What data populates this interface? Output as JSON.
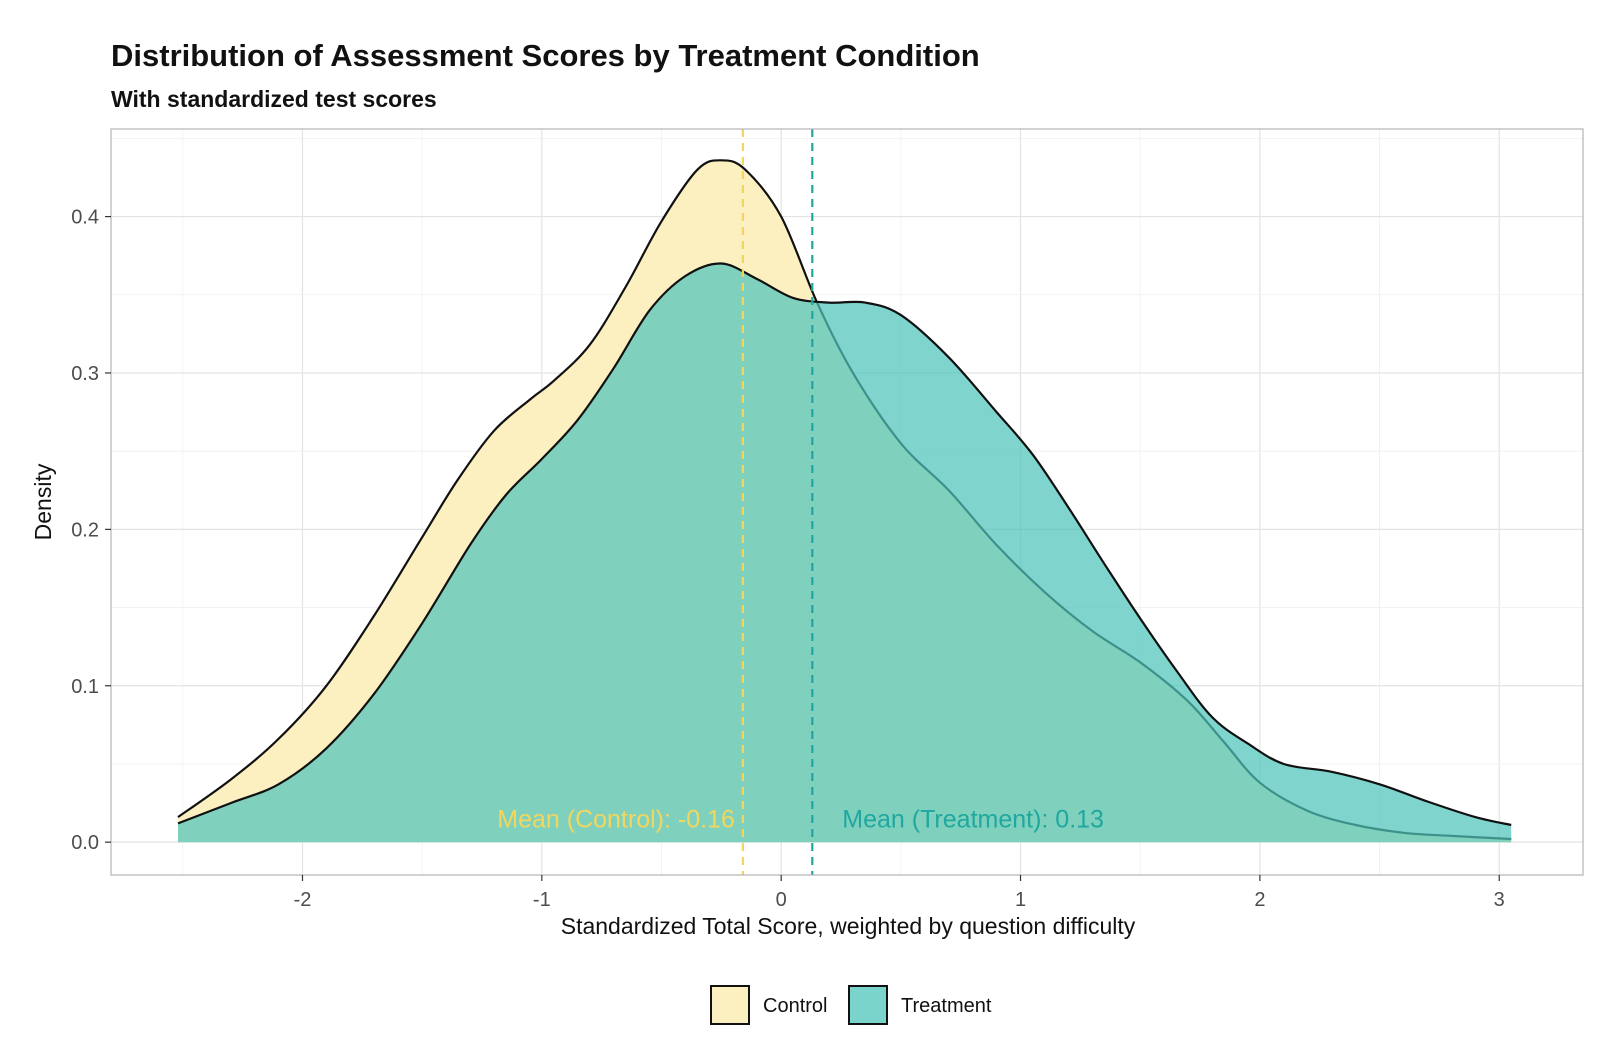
{
  "chart_data": {
    "type": "area",
    "title": "Distribution of Assessment Scores by Treatment Condition",
    "subtitle": "With standardized test scores",
    "xlabel": "Standardized Total Score, weighted by question difficulty",
    "ylabel": "Density",
    "xlim": [
      -2.8,
      3.35
    ],
    "ylim": [
      -0.021,
      0.456
    ],
    "x_ticks": [
      -2,
      -1,
      0,
      1,
      2,
      3
    ],
    "x_tick_labels": [
      "-2",
      "-1",
      "0",
      "1",
      "2",
      "3"
    ],
    "y_ticks": [
      0.0,
      0.1,
      0.2,
      0.3,
      0.4
    ],
    "y_tick_labels": [
      "0.0",
      "0.1",
      "0.2",
      "0.3",
      "0.4"
    ],
    "grid": true,
    "legend_position": "bottom",
    "series": [
      {
        "name": "Control",
        "color": "#fdf0c0",
        "mean_line_color": "#f2d65e",
        "x": [
          -2.52,
          -2.3,
          -2.1,
          -1.9,
          -1.7,
          -1.5,
          -1.35,
          -1.2,
          -1.05,
          -0.95,
          -0.8,
          -0.65,
          -0.5,
          -0.35,
          -0.25,
          -0.15,
          0.0,
          0.15,
          0.3,
          0.5,
          0.7,
          0.9,
          1.1,
          1.3,
          1.5,
          1.7,
          1.85,
          2.0,
          2.2,
          2.4,
          2.6,
          2.8,
          3.05
        ],
        "y": [
          0.016,
          0.04,
          0.066,
          0.1,
          0.145,
          0.195,
          0.232,
          0.263,
          0.283,
          0.295,
          0.318,
          0.355,
          0.397,
          0.43,
          0.436,
          0.43,
          0.4,
          0.345,
          0.3,
          0.255,
          0.225,
          0.19,
          0.16,
          0.135,
          0.115,
          0.09,
          0.064,
          0.038,
          0.02,
          0.011,
          0.006,
          0.004,
          0.002
        ],
        "mean": -0.16,
        "mean_label": "Mean (Control): -0.16"
      },
      {
        "name": "Treatment",
        "color": "#4ec5bb",
        "mean_line_color": "#1ea89f",
        "x": [
          -2.52,
          -2.3,
          -2.1,
          -1.9,
          -1.7,
          -1.5,
          -1.3,
          -1.15,
          -1.0,
          -0.85,
          -0.7,
          -0.55,
          -0.4,
          -0.25,
          -0.1,
          0.05,
          0.2,
          0.35,
          0.5,
          0.7,
          0.9,
          1.05,
          1.2,
          1.35,
          1.5,
          1.65,
          1.8,
          1.95,
          2.1,
          2.3,
          2.5,
          2.7,
          2.9,
          3.05
        ],
        "y": [
          0.012,
          0.025,
          0.037,
          0.06,
          0.095,
          0.14,
          0.19,
          0.222,
          0.245,
          0.27,
          0.303,
          0.34,
          0.362,
          0.37,
          0.36,
          0.348,
          0.345,
          0.345,
          0.337,
          0.31,
          0.275,
          0.248,
          0.214,
          0.178,
          0.143,
          0.11,
          0.08,
          0.063,
          0.05,
          0.045,
          0.037,
          0.026,
          0.016,
          0.011
        ],
        "mean": 0.13,
        "mean_label": "Mean (Treatment): 0.13"
      }
    ]
  }
}
